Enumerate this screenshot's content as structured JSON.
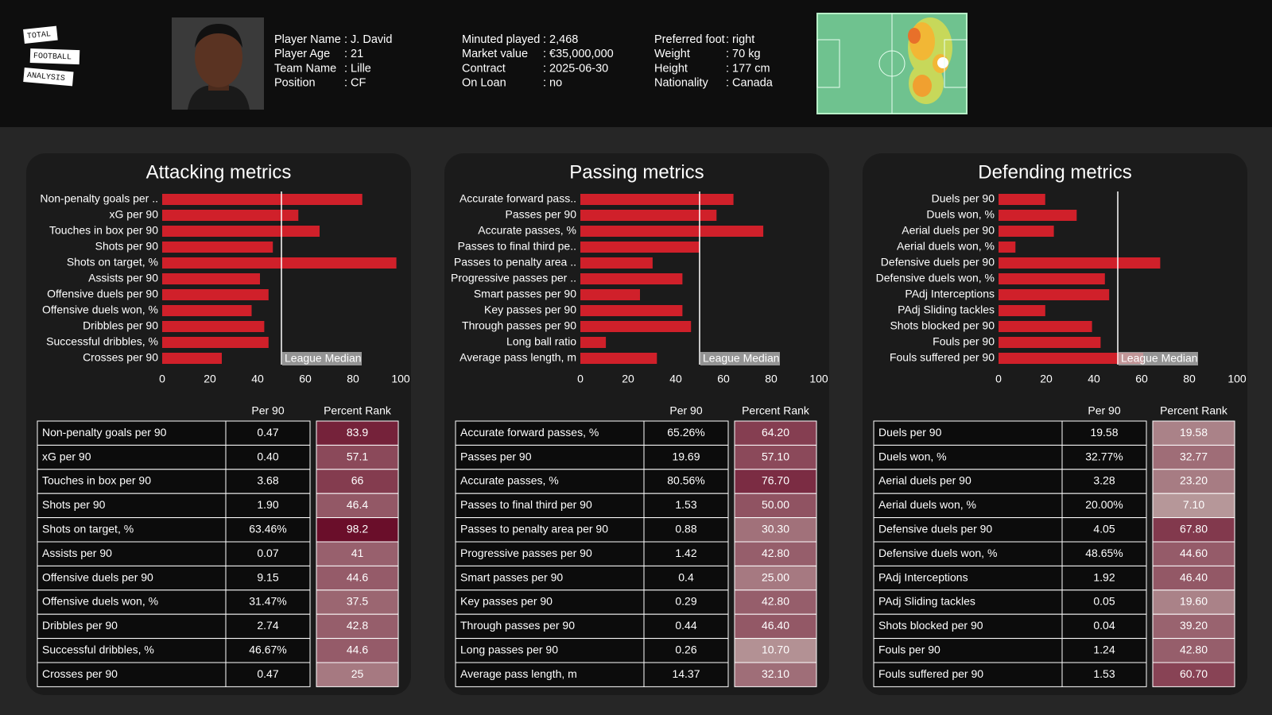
{
  "logo": [
    "TOTAL",
    "FOOTBALL",
    "ANALYSIS"
  ],
  "header": {
    "columns": [
      [
        {
          "label": "Player Name",
          "value": ": J. David"
        },
        {
          "label": "Player Age",
          "value": ": 21"
        },
        {
          "label": "Team Name",
          "value": ": Lille"
        },
        {
          "label": "Position",
          "value": ": CF"
        }
      ],
      [
        {
          "label": "Minuted played",
          "value": ": 2,468"
        },
        {
          "label": "Market value",
          "value": ": €35,000,000"
        },
        {
          "label": "Contract",
          "value": ": 2025-06-30"
        },
        {
          "label": "On Loan",
          "value": ": no"
        }
      ],
      [
        {
          "label": "Preferred foot",
          "value": ": right"
        },
        {
          "label": "Weight",
          "value": ": 70 kg"
        },
        {
          "label": "Height",
          "value": ": 177 cm"
        },
        {
          "label": "Nationality",
          "value": ": Canada"
        }
      ]
    ]
  },
  "chart_data": [
    {
      "type": "bar",
      "orientation": "horizontal",
      "title": "Attacking metrics",
      "color": "#d0202a",
      "categories": [
        "Non-penalty goals per ..",
        "xG per 90",
        "Touches in box per 90",
        "Shots per 90",
        "Shots on target, %",
        "Assists per 90",
        "Offensive duels per 90",
        "Offensive duels won, %",
        "Dribbles per 90",
        "Successful dribbles, %",
        "Crosses per 90"
      ],
      "values": [
        83.9,
        57.1,
        66,
        46.4,
        98.2,
        41,
        44.6,
        37.5,
        42.8,
        44.6,
        25
      ],
      "xlim": [
        0,
        100
      ],
      "xticks": [
        0,
        20,
        40,
        60,
        80,
        100
      ],
      "median": 50,
      "median_label": "League Median"
    },
    {
      "type": "bar",
      "orientation": "horizontal",
      "title": "Passing metrics",
      "color": "#d0202a",
      "categories": [
        "Accurate forward pass..",
        "Passes per 90",
        "Accurate passes, %",
        "Passes to final third pe..",
        "Passes to penalty area ..",
        "Progressive passes per ..",
        "Smart passes per 90",
        "Key passes per 90",
        "Through passes per 90",
        "Long ball ratio",
        "Average pass length, m"
      ],
      "values": [
        64.2,
        57.1,
        76.7,
        50,
        30.3,
        42.8,
        25,
        42.8,
        46.4,
        10.7,
        32.1
      ],
      "xlim": [
        0,
        100
      ],
      "xticks": [
        0,
        20,
        40,
        60,
        80,
        100
      ],
      "median": 50,
      "median_label": "League Median"
    },
    {
      "type": "bar",
      "orientation": "horizontal",
      "title": "Defending metrics",
      "color": "#d0202a",
      "categories": [
        "Duels per 90",
        "Duels won, %",
        "Aerial duels per 90",
        "Aerial duels won, %",
        "Defensive duels per 90",
        "Defensive duels won, %",
        "PAdj Interceptions",
        "PAdj Sliding tackles",
        "Shots blocked per 90",
        "Fouls per 90",
        "Fouls suffered per 90"
      ],
      "values": [
        19.58,
        32.77,
        23.2,
        7.1,
        67.8,
        44.6,
        46.4,
        19.6,
        39.2,
        42.8,
        60.7
      ],
      "xlim": [
        0,
        100
      ],
      "xticks": [
        0,
        20,
        40,
        60,
        80,
        100
      ],
      "median": 50,
      "median_label": "League Median"
    }
  ],
  "tables": [
    {
      "columns": [
        "Per 90",
        "Percent Rank"
      ],
      "rows": [
        [
          "Non-penalty goals per 90",
          "0.47",
          "83.9"
        ],
        [
          "xG per 90",
          "0.40",
          "57.1"
        ],
        [
          "Touches in box per 90",
          "3.68",
          "66"
        ],
        [
          "Shots per 90",
          "1.90",
          "46.4"
        ],
        [
          "Shots on target, %",
          "63.46%",
          "98.2"
        ],
        [
          "Assists per 90",
          "0.07",
          "41"
        ],
        [
          "Offensive duels per 90",
          "9.15",
          "44.6"
        ],
        [
          "Offensive duels won, %",
          "31.47%",
          "37.5"
        ],
        [
          "Dribbles per 90",
          "2.74",
          "42.8"
        ],
        [
          "Successful dribbles, %",
          "46.67%",
          "44.6"
        ],
        [
          "Crosses per 90",
          "0.47",
          "25"
        ]
      ]
    },
    {
      "columns": [
        "Per 90",
        "Percent Rank"
      ],
      "rows": [
        [
          "Accurate forward passes, %",
          "65.26%",
          "64.20"
        ],
        [
          "Passes per 90",
          "19.69",
          "57.10"
        ],
        [
          "Accurate passes, %",
          "80.56%",
          "76.70"
        ],
        [
          "Passes to final third per 90",
          "1.53",
          "50.00"
        ],
        [
          "Passes to penalty area per 90",
          "0.88",
          "30.30"
        ],
        [
          "Progressive passes per 90",
          "1.42",
          "42.80"
        ],
        [
          "Smart passes per 90",
          "0.4",
          "25.00"
        ],
        [
          "Key passes per 90",
          "0.29",
          "42.80"
        ],
        [
          "Through passes per 90",
          "0.44",
          "46.40"
        ],
        [
          "Long passes per 90",
          "0.26",
          "10.70"
        ],
        [
          "Average pass length, m",
          "14.37",
          "32.10"
        ]
      ]
    },
    {
      "columns": [
        "Per 90",
        "Percent Rank"
      ],
      "rows": [
        [
          "Duels per 90",
          "19.58",
          "19.58"
        ],
        [
          "Duels won, %",
          "32.77%",
          "32.77"
        ],
        [
          "Aerial duels per 90",
          "3.28",
          "23.20"
        ],
        [
          "Aerial duels won, %",
          "20.00%",
          "7.10"
        ],
        [
          "Defensive duels per 90",
          "4.05",
          "67.80"
        ],
        [
          "Defensive duels won, %",
          "48.65%",
          "44.60"
        ],
        [
          "PAdj Interceptions",
          "1.92",
          "46.40"
        ],
        [
          "PAdj Sliding tackles",
          "0.05",
          "19.60"
        ],
        [
          "Shots blocked per 90",
          "0.04",
          "39.20"
        ],
        [
          "Fouls per 90",
          "1.24",
          "42.80"
        ],
        [
          "Fouls suffered per 90",
          "1.53",
          "60.70"
        ]
      ]
    }
  ]
}
